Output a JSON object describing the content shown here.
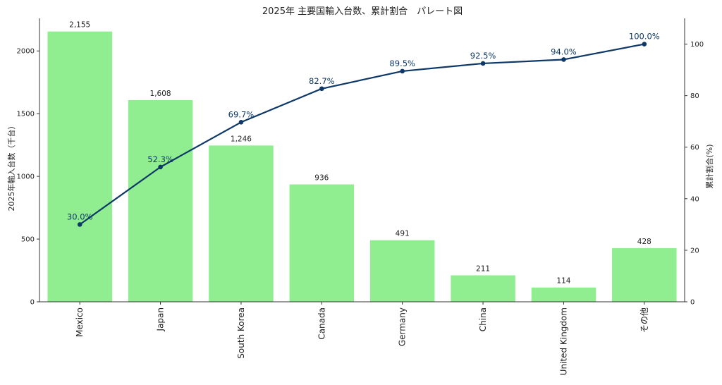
{
  "colors": {
    "bar": "#90ee90",
    "line": "#0d3868",
    "axis": "#333333",
    "text": "#222222"
  },
  "chart_data": {
    "type": "bar",
    "title": "2025年 主要国輸入台数、累計割合　パレート図",
    "xlabel": "",
    "ylabel": "2025年輸入台数（千台）",
    "y2label": "累計割合(%)",
    "categories": [
      "Mexico",
      "Japan",
      "South Korea",
      "Canada",
      "Germany",
      "China",
      "United Kingdom",
      "その他"
    ],
    "ylim": [
      0,
      2260
    ],
    "y2lim": [
      0,
      110
    ],
    "yticks": [
      0,
      500,
      1000,
      1500,
      2000
    ],
    "y2ticks": [
      0,
      20,
      40,
      60,
      80,
      100
    ],
    "grid": false,
    "series": [
      {
        "type": "bar",
        "values": [
          2155,
          1608,
          1246,
          936,
          491,
          211,
          114,
          428
        ],
        "labels": [
          "2,155",
          "1,608",
          "1,246",
          "936",
          "491",
          "211",
          "114",
          "428"
        ]
      },
      {
        "type": "line",
        "axis": "right",
        "values": [
          30.0,
          52.3,
          69.7,
          82.7,
          89.5,
          92.5,
          94.0,
          100.0
        ],
        "labels": [
          "30.0%",
          "52.3%",
          "69.7%",
          "82.7%",
          "89.5%",
          "92.5%",
          "94.0%",
          "100.0%"
        ]
      }
    ]
  }
}
